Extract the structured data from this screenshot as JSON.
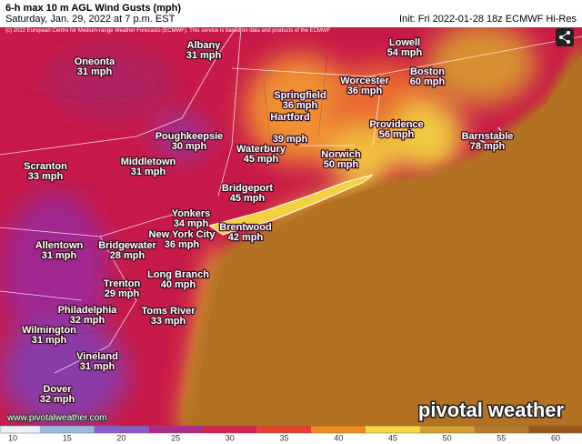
{
  "header": {
    "title": "6-h max 10 m AGL Wind Gusts (mph)",
    "subtitle": "Saturday, Jan. 29, 2022 at 7 p.m. EST",
    "init": "Init: Fri 2022-01-28 18z ECMWF Hi-Res",
    "copyright": "(c) 2022 European Centre for Medium-range Weather Forecasts (ECMWF). This service is based on data and products of the ECMWF"
  },
  "cities": [
    {
      "name": "Albany",
      "speed": "31 mph"
    },
    {
      "name": "Oneonta",
      "speed": "31 mph"
    },
    {
      "name": "Lowell",
      "speed": "54 mph"
    },
    {
      "name": "Boston",
      "speed": "60 mph"
    },
    {
      "name": "Worcester",
      "speed": "36 mph"
    },
    {
      "name": "Springfield",
      "speed": "36 mph"
    },
    {
      "name": "Hartford",
      "speed": "39 mph"
    },
    {
      "name": "Providence",
      "speed": "56 mph"
    },
    {
      "name": "Barnstable",
      "speed": "78 mph"
    },
    {
      "name": "Poughkeepsie",
      "speed": "30 mph"
    },
    {
      "name": "Norwich",
      "speed": "50 mph"
    },
    {
      "name": "Waterbury",
      "speed": "45 mph"
    },
    {
      "name": "Scranton",
      "speed": "33 mph"
    },
    {
      "name": "Middletown",
      "speed": "31 mph"
    },
    {
      "name": "Bridgeport",
      "speed": "45 mph"
    },
    {
      "name": "Yonkers",
      "speed": "34 mph"
    },
    {
      "name": "Brentwood",
      "speed": "42 mph"
    },
    {
      "name": "New York City",
      "speed": "36 mph"
    },
    {
      "name": "Allentown",
      "speed": "31 mph"
    },
    {
      "name": "Bridgewater",
      "speed": "28 mph"
    },
    {
      "name": "Long Branch",
      "speed": "40 mph"
    },
    {
      "name": "Trenton",
      "speed": "29 mph"
    },
    {
      "name": "Philadelphia",
      "speed": "32 mph"
    },
    {
      "name": "Toms River",
      "speed": "33 mph"
    },
    {
      "name": "Wilmington",
      "speed": "31 mph"
    },
    {
      "name": "Vineland",
      "speed": "31 mph"
    },
    {
      "name": "Dover",
      "speed": "32 mph"
    }
  ],
  "watermark": {
    "url": "www.pivotalweather.com",
    "brand": "pivotal weather"
  },
  "colorbar": {
    "ticks": [
      10,
      15,
      20,
      25,
      30,
      35,
      40,
      45,
      50,
      55,
      60
    ],
    "colors": [
      "#e8f0f8",
      "#9fb8e0",
      "#8a5cc8",
      "#b02a8a",
      "#d8204a",
      "#e8402a",
      "#f08a20",
      "#f5d840",
      "#d8a030",
      "#b87828",
      "#985818"
    ]
  }
}
